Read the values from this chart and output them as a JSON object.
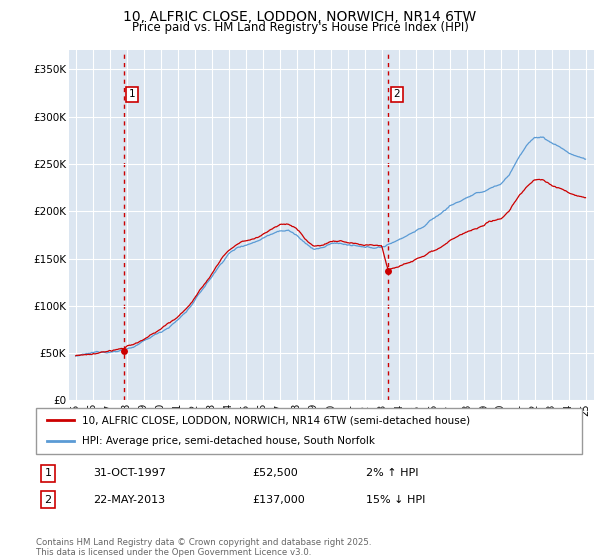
{
  "title_line1": "10, ALFRIC CLOSE, LODDON, NORWICH, NR14 6TW",
  "title_line2": "Price paid vs. HM Land Registry's House Price Index (HPI)",
  "yticks": [
    0,
    50000,
    100000,
    150000,
    200000,
    250000,
    300000,
    350000
  ],
  "ytick_labels": [
    "£0",
    "£50K",
    "£100K",
    "£150K",
    "£200K",
    "£250K",
    "£300K",
    "£350K"
  ],
  "ylim": [
    0,
    370000
  ],
  "xlim_start": 1994.6,
  "xlim_end": 2025.5,
  "transaction1_x": 1997.833,
  "transaction1_y": 52500,
  "transaction1_label": "1",
  "transaction1_date": "31-OCT-1997",
  "transaction1_price": "£52,500",
  "transaction1_hpi": "2% ↑ HPI",
  "transaction2_x": 2013.389,
  "transaction2_y": 137000,
  "transaction2_label": "2",
  "transaction2_date": "22-MAY-2013",
  "transaction2_price": "£137,000",
  "transaction2_hpi": "15% ↓ HPI",
  "legend_label1": "10, ALFRIC CLOSE, LODDON, NORWICH, NR14 6TW (semi-detached house)",
  "legend_label2": "HPI: Average price, semi-detached house, South Norfolk",
  "footer": "Contains HM Land Registry data © Crown copyright and database right 2025.\nThis data is licensed under the Open Government Licence v3.0.",
  "line_color": "#cc0000",
  "hpi_color": "#5b9bd5",
  "bg_color": "#ffffff",
  "plot_bg_color": "#dce6f1",
  "grid_color": "#ffffff"
}
